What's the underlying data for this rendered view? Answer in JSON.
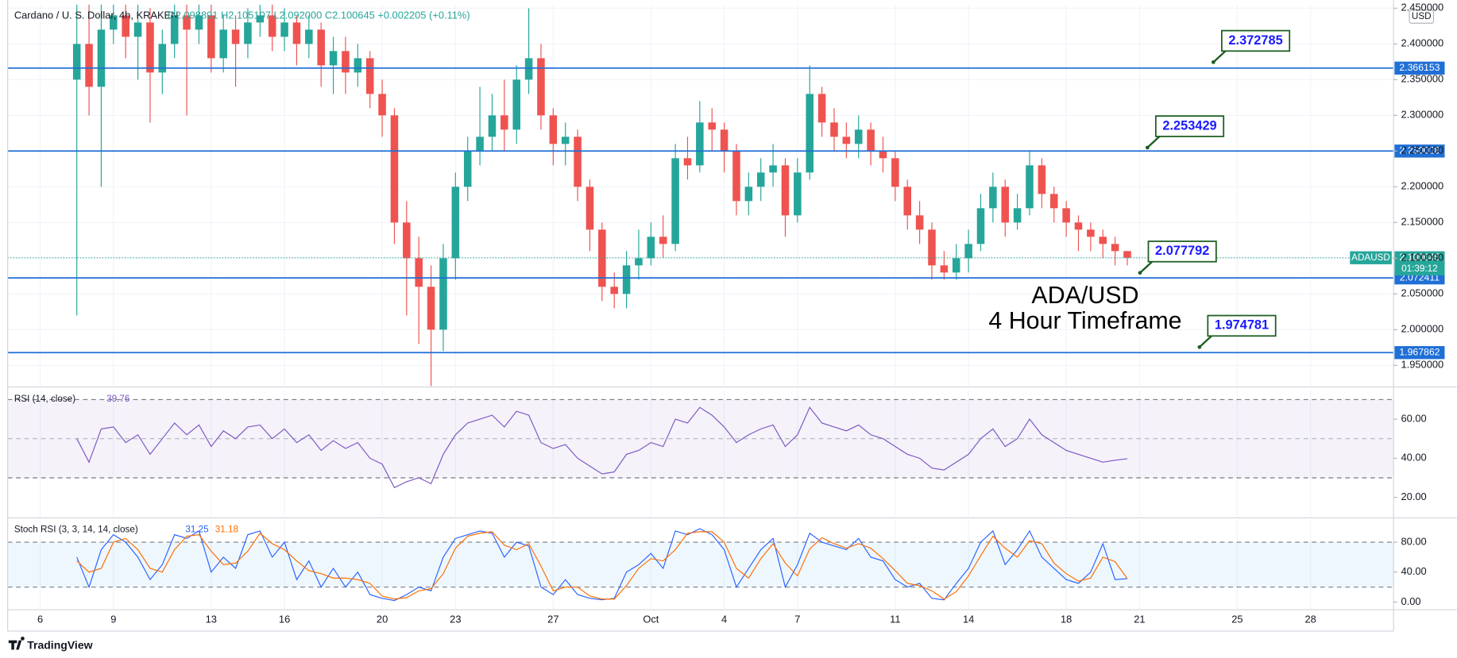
{
  "chart_data": [
    {
      "type": "candlestick",
      "title": "Cardano / U. S. Dollar, 4h, KRAKEN",
      "subtitle": "O2.098891 H2.105107 L2.092000 C2.100645 +0.002205 (+0.11%)",
      "currency": "USD",
      "symbol_label": "ADAUSD",
      "countdown": "01:39:12",
      "watermark": "TradingView",
      "annotation": [
        "ADA/USD",
        "4 Hour Timeframe"
      ],
      "up_color": "#26a69a",
      "down_color": "#ef5350",
      "level_color": "#1f6fd6",
      "x": [
        1.5,
        2,
        2.5,
        3,
        3.5,
        4,
        4.5,
        5,
        5.5,
        6,
        6.5,
        7,
        7.5,
        8,
        8.5,
        9,
        9.5,
        10,
        10.5,
        11,
        11.5,
        12,
        12.5,
        13,
        13.5,
        14,
        14.5,
        15,
        15.5,
        16,
        16.5,
        17,
        17.5,
        18,
        18.5,
        19,
        19.5,
        20,
        20.5,
        21,
        21.5,
        22,
        22.5,
        23,
        23.5,
        24,
        24.5,
        25,
        25.5,
        26,
        26.5,
        27,
        27.5,
        28,
        28.5,
        29,
        29.5,
        30,
        30.5,
        31,
        31.5,
        32,
        32.5,
        33,
        33.5,
        34,
        34.5,
        35,
        35.5,
        36,
        36.5,
        37,
        37.5,
        38,
        38.5,
        39,
        39.5,
        40,
        40.5,
        41,
        41.5,
        42,
        42.5,
        43,
        43.5,
        44,
        44.5
      ],
      "open": [
        2.35,
        2.4,
        2.34,
        2.42,
        2.44,
        2.41,
        2.43,
        2.36,
        2.4,
        2.44,
        2.42,
        2.44,
        2.38,
        2.42,
        2.4,
        2.43,
        2.44,
        2.41,
        2.43,
        2.4,
        2.42,
        2.37,
        2.39,
        2.36,
        2.38,
        2.33,
        2.3,
        2.15,
        2.1,
        2.06,
        2.0,
        2.1,
        2.2,
        2.25,
        2.27,
        2.3,
        2.28,
        2.35,
        2.38,
        2.3,
        2.26,
        2.27,
        2.2,
        2.14,
        2.06,
        2.05,
        2.09,
        2.1,
        2.13,
        2.12,
        2.24,
        2.23,
        2.29,
        2.28,
        2.25,
        2.18,
        2.2,
        2.22,
        2.23,
        2.16,
        2.22,
        2.33,
        2.29,
        2.27,
        2.26,
        2.28,
        2.25,
        2.24,
        2.2,
        2.16,
        2.14,
        2.09,
        2.08,
        2.1,
        2.12,
        2.17,
        2.2,
        2.15,
        2.17,
        2.23,
        2.19,
        2.17,
        2.15,
        2.14,
        2.13,
        2.12,
        2.11
      ],
      "high": [
        2.47,
        2.46,
        2.47,
        2.48,
        2.46,
        2.46,
        2.45,
        2.42,
        2.47,
        2.46,
        2.46,
        2.46,
        2.44,
        2.44,
        2.45,
        2.47,
        2.46,
        2.45,
        2.44,
        2.44,
        2.43,
        2.41,
        2.41,
        2.4,
        2.39,
        2.35,
        2.31,
        2.18,
        2.13,
        2.09,
        2.12,
        2.22,
        2.27,
        2.34,
        2.33,
        2.35,
        2.37,
        2.45,
        2.4,
        2.31,
        2.29,
        2.28,
        2.21,
        2.15,
        2.08,
        2.11,
        2.14,
        2.15,
        2.16,
        2.26,
        2.27,
        2.32,
        2.31,
        2.29,
        2.26,
        2.22,
        2.24,
        2.26,
        2.24,
        2.24,
        2.37,
        2.34,
        2.31,
        2.29,
        2.3,
        2.29,
        2.27,
        2.25,
        2.21,
        2.18,
        2.15,
        2.11,
        2.12,
        2.14,
        2.19,
        2.22,
        2.21,
        2.19,
        2.25,
        2.24,
        2.2,
        2.18,
        2.16,
        2.15,
        2.14,
        2.13,
        2.11
      ],
      "low": [
        2.02,
        2.3,
        2.2,
        2.4,
        2.38,
        2.35,
        2.29,
        2.33,
        2.38,
        2.3,
        2.4,
        2.36,
        2.36,
        2.34,
        2.38,
        2.41,
        2.39,
        2.39,
        2.37,
        2.38,
        2.34,
        2.33,
        2.33,
        2.34,
        2.31,
        2.27,
        2.12,
        2.02,
        1.98,
        1.92,
        1.97,
        2.07,
        2.18,
        2.23,
        2.25,
        2.25,
        2.26,
        2.33,
        2.28,
        2.23,
        2.23,
        2.18,
        2.11,
        2.04,
        2.03,
        2.03,
        2.07,
        2.09,
        2.1,
        2.11,
        2.21,
        2.22,
        2.25,
        2.22,
        2.16,
        2.16,
        2.18,
        2.2,
        2.13,
        2.15,
        2.21,
        2.27,
        2.25,
        2.24,
        2.24,
        2.23,
        2.22,
        2.18,
        2.14,
        2.12,
        2.07,
        2.07,
        2.07,
        2.08,
        2.11,
        2.15,
        2.13,
        2.14,
        2.16,
        2.17,
        2.15,
        2.13,
        2.11,
        2.11,
        2.1,
        2.09,
        2.09
      ],
      "close": [
        2.4,
        2.34,
        2.42,
        2.44,
        2.41,
        2.43,
        2.36,
        2.4,
        2.44,
        2.42,
        2.44,
        2.38,
        2.42,
        2.4,
        2.43,
        2.44,
        2.41,
        2.43,
        2.4,
        2.42,
        2.37,
        2.39,
        2.36,
        2.38,
        2.33,
        2.3,
        2.15,
        2.1,
        2.06,
        2.0,
        2.1,
        2.2,
        2.25,
        2.27,
        2.3,
        2.28,
        2.35,
        2.38,
        2.3,
        2.26,
        2.27,
        2.2,
        2.14,
        2.06,
        2.05,
        2.09,
        2.1,
        2.13,
        2.12,
        2.24,
        2.23,
        2.29,
        2.28,
        2.25,
        2.18,
        2.2,
        2.22,
        2.23,
        2.16,
        2.22,
        2.33,
        2.29,
        2.27,
        2.26,
        2.28,
        2.25,
        2.24,
        2.2,
        2.16,
        2.14,
        2.09,
        2.08,
        2.1,
        2.12,
        2.17,
        2.2,
        2.15,
        2.17,
        2.23,
        2.19,
        2.17,
        2.15,
        2.14,
        2.13,
        2.12,
        2.11,
        2.100645
      ],
      "xlim": [
        -1.33,
        55.4
      ],
      "xticks": [
        {
          "value": 0,
          "label": "6"
        },
        {
          "value": 3,
          "label": "9"
        },
        {
          "value": 7,
          "label": "13"
        },
        {
          "value": 10,
          "label": "16"
        },
        {
          "value": 14,
          "label": "20"
        },
        {
          "value": 17,
          "label": "23"
        },
        {
          "value": 21,
          "label": "27"
        },
        {
          "value": 25,
          "label": "Oct"
        },
        {
          "value": 28,
          "label": "4"
        },
        {
          "value": 31,
          "label": "7"
        },
        {
          "value": 35,
          "label": "11"
        },
        {
          "value": 38,
          "label": "14"
        },
        {
          "value": 42,
          "label": "18"
        },
        {
          "value": 45,
          "label": "21"
        },
        {
          "value": 49,
          "label": "25"
        },
        {
          "value": 52,
          "label": "28"
        }
      ],
      "ylim": [
        1.921,
        2.455
      ],
      "yticks": [
        {
          "value": 1.95,
          "label": "1.950000"
        },
        {
          "value": 2.0,
          "label": "2.000000"
        },
        {
          "value": 2.05,
          "label": "2.050000"
        },
        {
          "value": 2.1,
          "label": "2.100000"
        },
        {
          "value": 2.15,
          "label": "2.150000"
        },
        {
          "value": 2.2,
          "label": "2.200000"
        },
        {
          "value": 2.25,
          "label": "2.250000"
        },
        {
          "value": 2.3,
          "label": "2.300000"
        },
        {
          "value": 2.35,
          "label": "2.350000"
        },
        {
          "value": 2.4,
          "label": "2.400000"
        },
        {
          "value": 2.45,
          "label": "2.450000"
        }
      ],
      "grid": true,
      "levels": [
        2.366153,
        2.250028,
        2.072411,
        1.967862
      ],
      "callouts": [
        2.372785,
        2.253429,
        2.077792,
        1.974781
      ]
    },
    {
      "type": "line",
      "title": "RSI (14, close)",
      "color": "#7e57c2",
      "values": [
        50,
        38,
        55,
        56,
        48,
        52,
        42,
        50,
        58,
        52,
        57,
        46,
        54,
        50,
        56,
        57,
        50,
        55,
        48,
        52,
        44,
        49,
        45,
        48,
        40,
        37,
        25,
        28,
        30,
        27,
        42,
        52,
        58,
        60,
        62,
        56,
        64,
        62,
        48,
        45,
        47,
        40,
        36,
        32,
        33,
        42,
        44,
        48,
        46,
        60,
        58,
        66,
        62,
        56,
        48,
        52,
        55,
        57,
        46,
        52,
        66,
        58,
        56,
        54,
        57,
        52,
        50,
        46,
        42,
        40,
        35,
        34,
        38,
        42,
        50,
        55,
        46,
        50,
        60,
        52,
        48,
        44,
        42,
        40,
        38,
        39,
        39.76
      ],
      "ylim": [
        10,
        75
      ],
      "yticks": [
        {
          "value": 20,
          "label": "20.00"
        },
        {
          "value": 40,
          "label": "40.00"
        },
        {
          "value": 60,
          "label": "60.00"
        }
      ],
      "band": [
        30,
        70
      ],
      "midline": 50,
      "band_color": "#7e57c2"
    },
    {
      "type": "line",
      "title": "Stoch RSI (3, 3, 14, 14, close)",
      "series": [
        {
          "color": "#2962ff",
          "values": [
            60,
            20,
            70,
            90,
            80,
            60,
            30,
            50,
            90,
            85,
            95,
            40,
            60,
            45,
            90,
            95,
            60,
            80,
            30,
            55,
            20,
            45,
            20,
            40,
            10,
            5,
            2,
            10,
            20,
            15,
            60,
            85,
            90,
            95,
            92,
            60,
            80,
            75,
            20,
            10,
            30,
            10,
            5,
            3,
            5,
            40,
            50,
            65,
            45,
            95,
            90,
            98,
            90,
            70,
            20,
            45,
            70,
            85,
            20,
            50,
            92,
            80,
            75,
            70,
            85,
            60,
            55,
            30,
            20,
            25,
            5,
            3,
            25,
            45,
            80,
            95,
            50,
            70,
            95,
            60,
            45,
            30,
            25,
            40,
            78,
            30,
            31.25
          ]
        },
        {
          "color": "#ff6d00",
          "values": [
            55,
            40,
            45,
            80,
            85,
            70,
            45,
            40,
            70,
            88,
            90,
            68,
            50,
            52,
            68,
            92,
            78,
            70,
            55,
            42,
            38,
            32,
            32,
            30,
            25,
            8,
            4,
            6,
            15,
            18,
            38,
            72,
            88,
            92,
            94,
            76,
            70,
            78,
            48,
            15,
            20,
            20,
            8,
            4,
            4,
            22,
            45,
            58,
            55,
            70,
            92,
            94,
            94,
            80,
            45,
            32,
            58,
            78,
            52,
            35,
            71,
            86,
            78,
            72,
            78,
            72,
            58,
            42,
            25,
            22,
            15,
            4,
            14,
            35,
            62,
            88,
            72,
            60,
            82,
            78,
            52,
            38,
            28,
            32,
            60,
            54,
            31.18
          ]
        }
      ],
      "ylim": [
        -9,
        110
      ],
      "yticks": [
        {
          "value": 0,
          "label": "0.00"
        },
        {
          "value": 40,
          "label": "40.00"
        },
        {
          "value": 80,
          "label": "80.00"
        }
      ],
      "band": [
        20,
        80
      ],
      "band_color": "#2196f3"
    }
  ]
}
